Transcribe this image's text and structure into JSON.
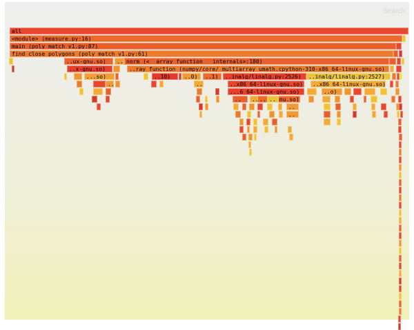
{
  "toolbar": {
    "search_label": "Search"
  },
  "palette": [
    "#e5472f",
    "#e8602c",
    "#ec7c2b",
    "#f0942e",
    "#f4aa36",
    "#ee5432",
    "#f1c232",
    "#e5e53b",
    "#d43a2a",
    "#f5b940"
  ],
  "frames": [
    {
      "label": "all",
      "c": "#e8472e"
    },
    {
      "label": "<module> (measure.py:16)",
      "c": "#ec6a2c"
    },
    {
      "label": "main (poly_match_v1.py:87)",
      "c": "#e7602b"
    },
    {
      "label": "find_close_polygons (poly_match_v1.py:61)",
      "c": "#ec7a2b"
    },
    {
      "label": "..ux-gnu.so)",
      "c": "#e8622e"
    },
    {
      "label": "..",
      "c": "#f19a35"
    },
    {
      "label": "norm (<__array_function__ internals>:180)",
      "c": "#e8602c"
    },
    {
      "label": "..x-gnu.so)",
      "c": "#e9402c"
    },
    {
      "label": "..ray_function (numpy/core/_multiarray_umath.cpython-310-x86_64-linux-gnu.so)",
      "c": "#ea7c2c"
    },
    {
      "label": "...so)",
      "c": "#eea235"
    },
    {
      "label": "..10)",
      "c": "#e23a2a"
    },
    {
      "label": "..0)",
      "c": "#f19a35"
    },
    {
      "label": "..1)",
      "c": "#ec6a2c"
    },
    {
      "label": "..inalg/linalg.py:2526)",
      "c": "#e9402c"
    },
    {
      "label": "..inalg/linalg.py:2527)",
      "c": "#ecc43a"
    },
    {
      "label": "..x86_64-linux-gnu.so)",
      "c": "#e5472f"
    },
    {
      "label": "..x86_64-linux-gnu.so)",
      "c": "#f2ab36"
    },
    {
      "label": "...6_64-linux-gnu.so)",
      "c": "#e9402c"
    },
    {
      "label": "..o)",
      "c": "#f19a35"
    },
    {
      "label": "..",
      "c": "#e8602c"
    },
    {
      "label": "...x-gnu.so)",
      "c": "#ec6a2c"
    },
    {
      "label": "..",
      "c": "#f2ab36"
    },
    {
      "label": "..",
      "c": "#ecc43a"
    },
    {
      "label": "..",
      "c": "#f2ab36"
    },
    {
      "label": "..",
      "c": "#f19a35"
    },
    {
      "label": "..",
      "c": "#f19a35"
    },
    {
      "label": "..",
      "c": "#f19a35"
    }
  ]
}
